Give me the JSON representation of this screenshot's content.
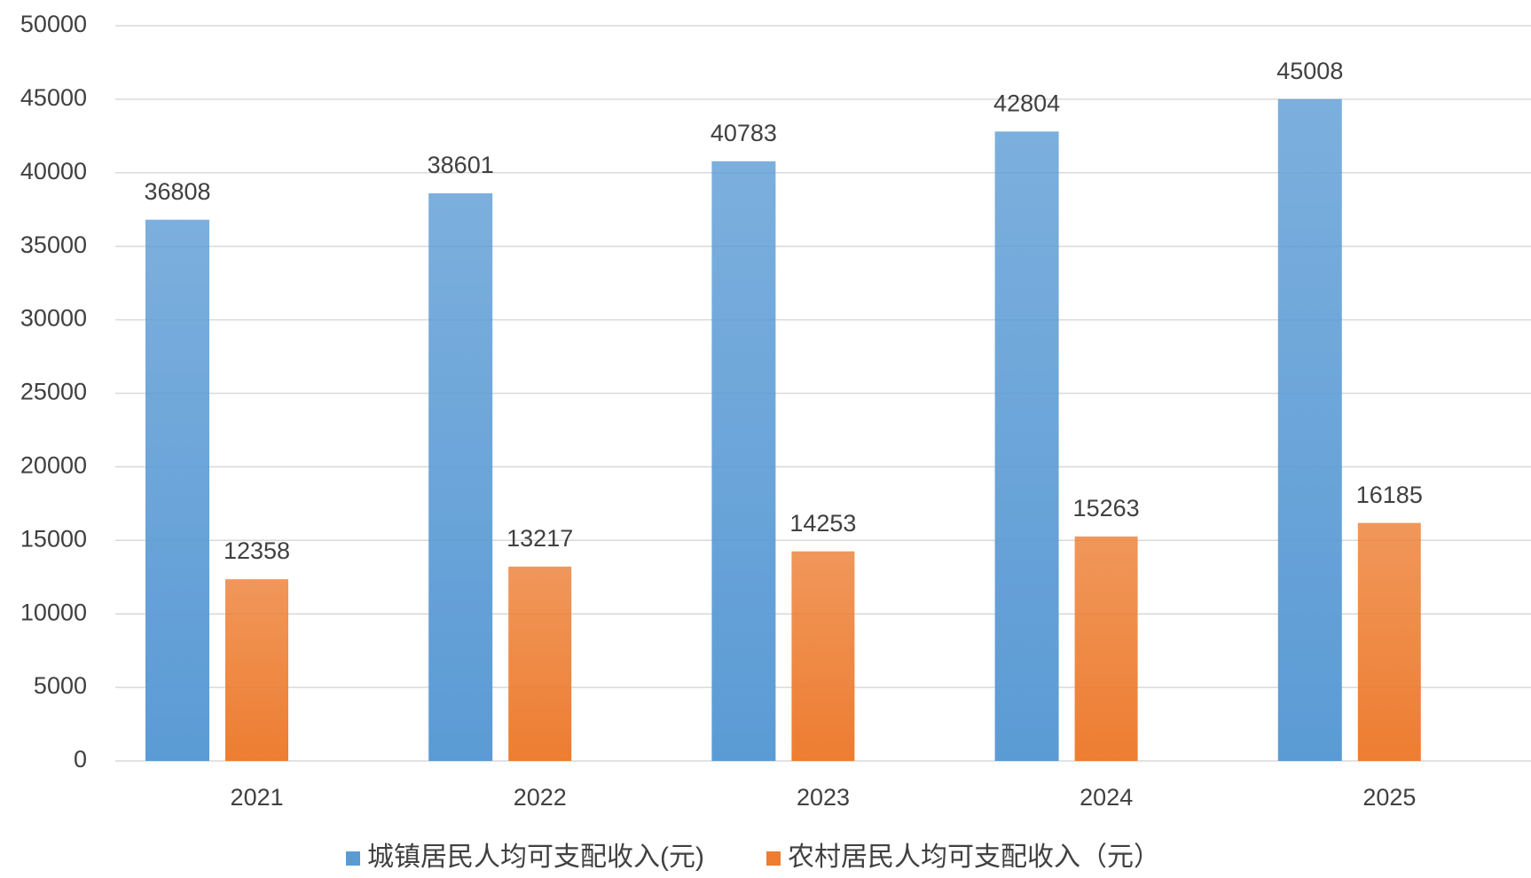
{
  "chart_data": {
    "type": "bar",
    "categories": [
      "2021",
      "2022",
      "2023",
      "2024",
      "2025"
    ],
    "series": [
      {
        "name": "城镇居民人均可支配收入(元)",
        "color": "#5b9bd5",
        "values": [
          36808,
          38601,
          40783,
          42804,
          45008
        ]
      },
      {
        "name": "农村居民人均可支配收入（元）",
        "color": "#ed7d31",
        "values": [
          12358,
          13217,
          14253,
          15263,
          16185
        ]
      }
    ],
    "ylim": [
      0,
      50000
    ],
    "yticks": [
      0,
      5000,
      10000,
      15000,
      20000,
      25000,
      30000,
      35000,
      40000,
      45000,
      50000
    ],
    "grid": true,
    "legend": "bottom"
  }
}
